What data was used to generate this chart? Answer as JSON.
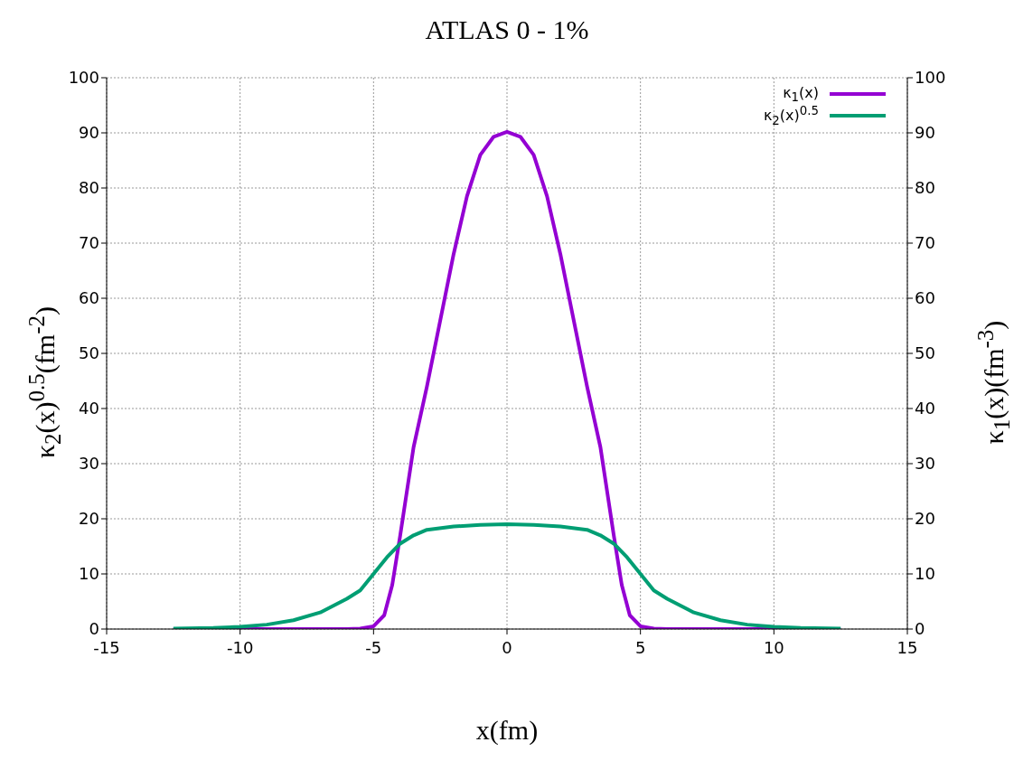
{
  "chart_data": {
    "type": "line",
    "title": "ATLAS 0 - 1%",
    "xlabel": "x(fm)",
    "ylabel": "κ$_{2}$(x)$^{0.5}$(fm$^{-2}$)",
    "y2label": "κ$_{1}$(x)(fm$^{-3}$)",
    "xlim": [
      -15,
      15
    ],
    "xticks": [
      -15,
      -10,
      -5,
      0,
      5,
      10,
      15
    ],
    "ylim": [
      0,
      100
    ],
    "yticks": [
      0,
      10,
      20,
      30,
      40,
      50,
      60,
      70,
      80,
      90,
      100
    ],
    "y2lim": [
      0,
      100
    ],
    "y2ticks": [
      0,
      10,
      20,
      30,
      40,
      50,
      60,
      70,
      80,
      90,
      100
    ],
    "grid": true,
    "legend": "top right",
    "line_style": "solid",
    "marker": "none",
    "series": [
      {
        "name": "κ$_{1}$(x)",
        "color": "#9400d3",
        "x": [
          -12.5,
          -8,
          -6,
          -5.5,
          -5,
          -4.6,
          -4.3,
          -4,
          -3.5,
          -3,
          -2.5,
          -2,
          -1.5,
          -1,
          -0.5,
          0,
          0.5,
          1,
          1.5,
          2,
          2.5,
          3,
          3.5,
          4,
          4.3,
          4.6,
          5,
          5.5,
          6,
          8,
          12.5
        ],
        "values": [
          0,
          0,
          0,
          0.1,
          0.5,
          2.5,
          8,
          17,
          33,
          44,
          56,
          68,
          78.5,
          86,
          89.3,
          90.2,
          89.3,
          86,
          78.5,
          68,
          56,
          44,
          33,
          17,
          8,
          2.5,
          0.5,
          0.1,
          0,
          0,
          0
        ]
      },
      {
        "name": "κ$_{2}$(x)$^{0.5}$",
        "color": "#009e73",
        "x": [
          -12.5,
          -11,
          -10,
          -9,
          -8,
          -7,
          -6,
          -5.5,
          -5,
          -4.5,
          -4,
          -3.5,
          -3,
          -2,
          -1,
          0,
          1,
          2,
          3,
          3.5,
          4,
          4.5,
          5,
          5.5,
          6,
          7,
          8,
          9,
          10,
          11,
          12.5
        ],
        "values": [
          0.1,
          0.2,
          0.4,
          0.8,
          1.6,
          3,
          5.5,
          7,
          10,
          13,
          15.5,
          17,
          18,
          18.6,
          18.9,
          19,
          18.9,
          18.6,
          18,
          17,
          15.5,
          13,
          10,
          7,
          5.5,
          3,
          1.6,
          0.8,
          0.4,
          0.2,
          0.1
        ]
      }
    ]
  }
}
